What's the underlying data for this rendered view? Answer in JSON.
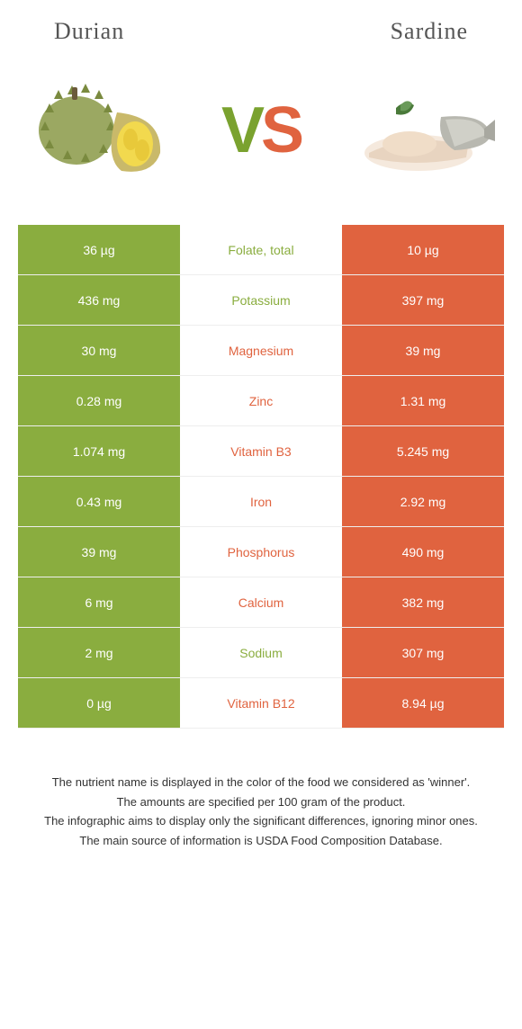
{
  "left_food": {
    "name": "Durian",
    "color": "#8aad3f",
    "text_color": "#ffffff"
  },
  "right_food": {
    "name": "Sardine",
    "color": "#e0633f",
    "text_color": "#ffffff"
  },
  "vs_colors": {
    "v": "#7aa22f",
    "s": "#e0633f"
  },
  "nutrient_winner_colors": {
    "left": "#8aad3f",
    "right": "#e0633f"
  },
  "mid_bg": "#ffffff",
  "row_border": "#eeeeee",
  "nutrients": [
    {
      "name": "Folate, total",
      "left": "36 µg",
      "right": "10 µg",
      "winner": "left"
    },
    {
      "name": "Potassium",
      "left": "436 mg",
      "right": "397 mg",
      "winner": "left"
    },
    {
      "name": "Magnesium",
      "left": "30 mg",
      "right": "39 mg",
      "winner": "right"
    },
    {
      "name": "Zinc",
      "left": "0.28 mg",
      "right": "1.31 mg",
      "winner": "right"
    },
    {
      "name": "Vitamin B3",
      "left": "1.074 mg",
      "right": "5.245 mg",
      "winner": "right"
    },
    {
      "name": "Iron",
      "left": "0.43 mg",
      "right": "2.92 mg",
      "winner": "right"
    },
    {
      "name": "Phosphorus",
      "left": "39 mg",
      "right": "490 mg",
      "winner": "right"
    },
    {
      "name": "Calcium",
      "left": "6 mg",
      "right": "382 mg",
      "winner": "right"
    },
    {
      "name": "Sodium",
      "left": "2 mg",
      "right": "307 mg",
      "winner": "left"
    },
    {
      "name": "Vitamin B12",
      "left": "0 µg",
      "right": "8.94 µg",
      "winner": "right"
    }
  ],
  "footer": {
    "line1": "The nutrient name is displayed in the color of the food we considered as 'winner'.",
    "line2": "The amounts are specified per 100 gram of the product.",
    "line3": "The infographic aims to display only the significant differences, ignoring minor ones.",
    "line4": "The main source of information is USDA Food Composition Database."
  }
}
